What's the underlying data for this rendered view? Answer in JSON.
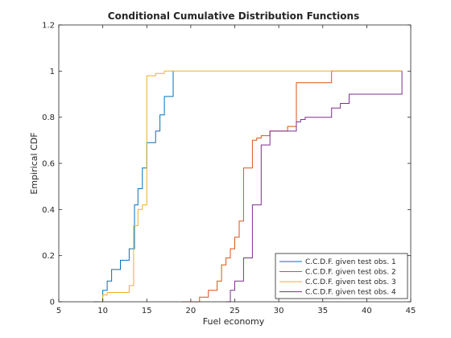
{
  "chart_data": {
    "type": "line",
    "title": "Conditional Cumulative Distribution Functions",
    "xlabel": "Fuel economy",
    "ylabel": "Empirical CDF",
    "xlim": [
      5,
      45
    ],
    "ylim": [
      0,
      1.2
    ],
    "xticks": [
      "5",
      "10",
      "15",
      "20",
      "25",
      "30",
      "35",
      "40",
      "45"
    ],
    "yticks": [
      "0",
      "0.2",
      "0.4",
      "0.6",
      "0.8",
      "1",
      "1.2"
    ],
    "grid": false,
    "legend_position": "bottom-right",
    "step": true,
    "series": [
      {
        "name": "C.C.D.F. given test obs. 1",
        "color": "#0072BD",
        "x": [
          9,
          10,
          10.5,
          11,
          12,
          13,
          13.6,
          14,
          14.5,
          15,
          16,
          16.5,
          17,
          18
        ],
        "y": [
          0,
          0.05,
          0.09,
          0.14,
          0.18,
          0.23,
          0.42,
          0.49,
          0.58,
          0.69,
          0.74,
          0.81,
          0.89,
          1.0
        ]
      },
      {
        "name": "C.C.D.F. given test obs. 2",
        "color": "#D95319",
        "x": [
          19,
          21,
          22,
          23,
          23.5,
          24,
          24.5,
          25,
          25.5,
          26,
          27,
          27.5,
          28,
          29,
          31,
          32,
          36,
          44
        ],
        "y": [
          0,
          0.02,
          0.05,
          0.09,
          0.16,
          0.19,
          0.23,
          0.28,
          0.35,
          0.58,
          0.7,
          0.71,
          0.72,
          0.74,
          0.76,
          0.95,
          1.0,
          1.0
        ]
      },
      {
        "name": "C.C.D.F. given test obs. 3",
        "color": "#EDB120",
        "x": [
          9.5,
          10,
          10.5,
          11,
          13,
          13.5,
          14,
          14.5,
          15,
          15.5,
          16,
          17,
          44
        ],
        "y": [
          0,
          0.03,
          0.04,
          0.04,
          0.07,
          0.33,
          0.4,
          0.42,
          0.98,
          0.98,
          0.99,
          1.0,
          1.0
        ]
      },
      {
        "name": "C.C.D.F. given test obs. 4",
        "color": "#7E2F8E",
        "x": [
          24,
          24.5,
          25,
          26,
          27,
          28,
          29,
          32,
          32.5,
          33,
          34,
          36,
          37,
          38,
          44
        ],
        "y": [
          0,
          0.05,
          0.09,
          0.19,
          0.42,
          0.68,
          0.74,
          0.78,
          0.79,
          0.8,
          0.8,
          0.84,
          0.86,
          0.9,
          1.0
        ]
      }
    ]
  }
}
